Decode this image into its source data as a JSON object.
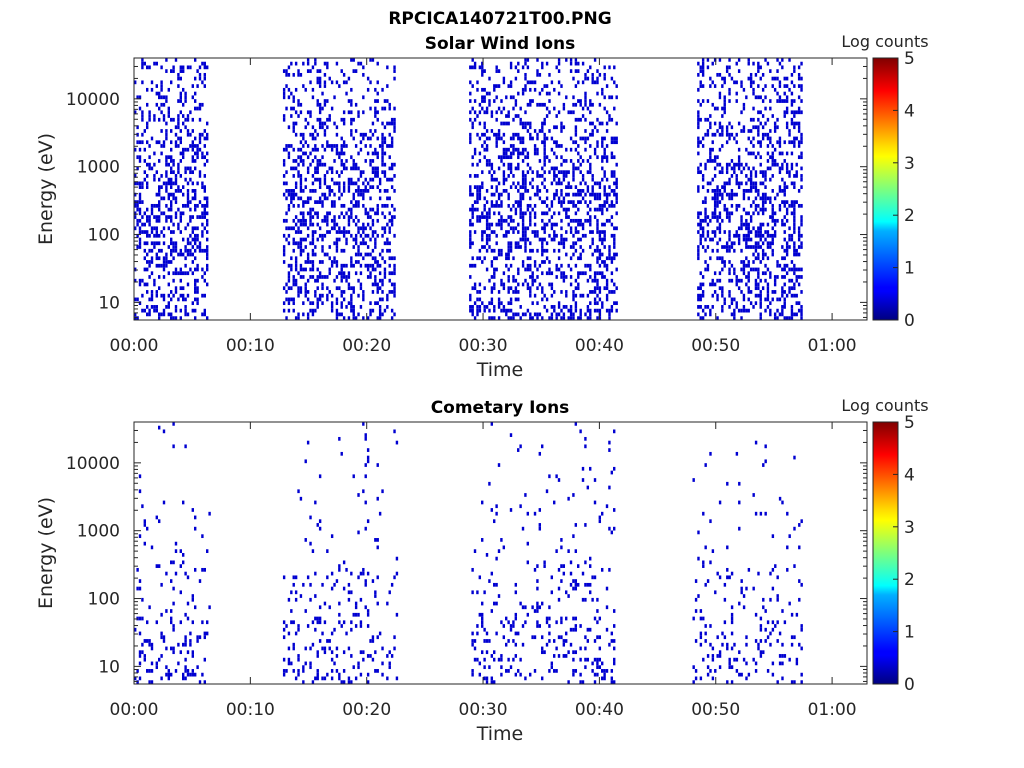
{
  "figure_title": "RPCICA140721T00.PNG",
  "colorbar": {
    "label": "Log counts",
    "ticks": [
      "0",
      "1",
      "2",
      "3",
      "4",
      "5"
    ],
    "range": [
      0,
      5
    ],
    "colormap": "jet"
  },
  "chart_data": [
    {
      "type": "heatmap",
      "title": "Solar Wind Ions",
      "xlabel": "Time",
      "ylabel": "Energy (eV)",
      "x_ticks": [
        "00:00",
        "00:10",
        "00:20",
        "00:30",
        "00:40",
        "00:50",
        "01:00"
      ],
      "x_range_minutes": [
        0,
        63
      ],
      "y_ticks": [
        "10",
        "100",
        "1000",
        "10000"
      ],
      "y_scale": "log",
      "y_range": [
        5.5,
        40000
      ],
      "dominant_level": 0.4,
      "bursts": [
        {
          "start_minutes": 0.0,
          "end_minutes": 6.3
        },
        {
          "start_minutes": 12.8,
          "end_minutes": 22.4
        },
        {
          "start_minutes": 28.8,
          "end_minutes": 41.5
        },
        {
          "start_minutes": 48.4,
          "end_minutes": 57.4
        }
      ]
    },
    {
      "type": "heatmap",
      "title": "Cometary Ions",
      "xlabel": "Time",
      "ylabel": "Energy (eV)",
      "x_ticks": [
        "00:00",
        "00:10",
        "00:20",
        "00:30",
        "00:40",
        "00:50",
        "01:00"
      ],
      "x_range_minutes": [
        0,
        63
      ],
      "y_ticks": [
        "10",
        "100",
        "1000",
        "10000"
      ],
      "y_scale": "log",
      "y_range": [
        5.5,
        40000
      ],
      "dominant_level": 0.4,
      "bursts": [
        {
          "start_minutes": 0.0,
          "end_minutes": 6.5
        },
        {
          "start_minutes": 12.8,
          "end_minutes": 22.6
        },
        {
          "start_minutes": 29.0,
          "end_minutes": 41.3
        },
        {
          "start_minutes": 48.0,
          "end_minutes": 57.4
        }
      ]
    }
  ]
}
